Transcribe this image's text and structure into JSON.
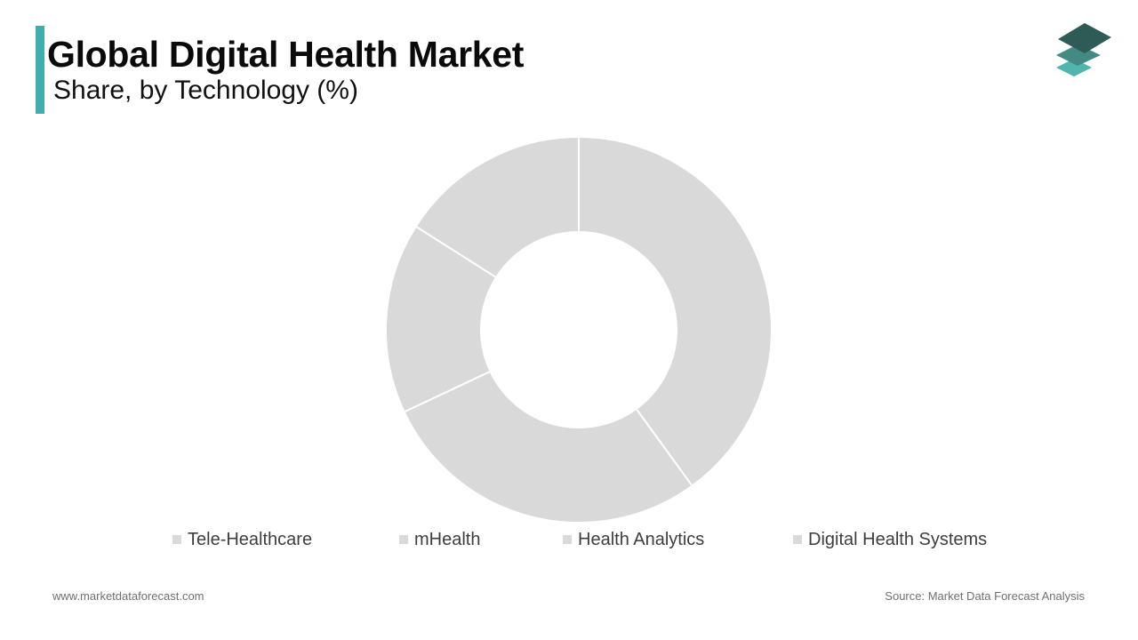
{
  "header": {
    "title": "Global Digital Health Market",
    "subtitle": "Share, by Technology (%)"
  },
  "brand": {
    "logo_icon": "stacked-layers-logo-icon",
    "accent_color": "#40aeae",
    "logo_colors": [
      "#2e5b55",
      "#438a82",
      "#4fb5ae"
    ]
  },
  "chart_data": {
    "type": "pie",
    "donut": true,
    "title": "Global Digital Health Market",
    "subtitle": "Share, by Technology (%)",
    "categories": [
      "Tele-Healthcare",
      "mHealth",
      "Health Analytics",
      "Digital Health Systems"
    ],
    "values": [
      40,
      28,
      16,
      16
    ],
    "slice_color": "#d9d9d9",
    "legend_position": "bottom",
    "data_labels": false
  },
  "legend": {
    "items": [
      {
        "label": "Tele-Healthcare"
      },
      {
        "label": "mHealth"
      },
      {
        "label": "Health Analytics"
      },
      {
        "label": "Digital Health Systems"
      }
    ]
  },
  "footer": {
    "website": "www.marketdataforecast.com",
    "source": "Source: Market Data Forecast Analysis"
  }
}
